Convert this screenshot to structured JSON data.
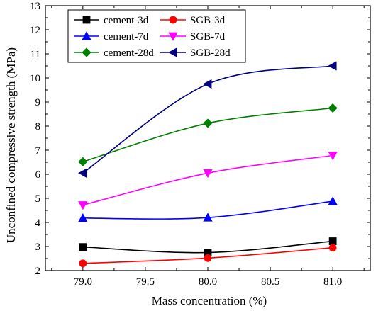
{
  "chart_data": {
    "type": "line",
    "xlabel": "Mass concentration (%)",
    "ylabel": "Unconfined compressive strength (MPa)",
    "xlim": [
      78.7,
      81.3
    ],
    "ylim": [
      2,
      13
    ],
    "x_ticks": [
      "79.0",
      "79.5",
      "80.0",
      "80.5",
      "81.0"
    ],
    "x_tick_values": [
      79.0,
      79.5,
      80.0,
      80.5,
      81.0
    ],
    "y_ticks": [
      "2",
      "3",
      "4",
      "5",
      "6",
      "7",
      "8",
      "9",
      "10",
      "11",
      "12",
      "13"
    ],
    "y_tick_values": [
      2,
      3,
      4,
      5,
      6,
      7,
      8,
      9,
      10,
      11,
      12,
      13
    ],
    "x": [
      79.0,
      80.0,
      81.0
    ],
    "legend_position": "top-left",
    "series": [
      {
        "name": "cement-3d",
        "values": [
          2.98,
          2.75,
          3.22
        ],
        "color": "#000000",
        "marker": "square"
      },
      {
        "name": "SGB-3d",
        "values": [
          2.3,
          2.52,
          2.95
        ],
        "color": "#ff0000",
        "marker": "circle"
      },
      {
        "name": "cement-7d",
        "values": [
          4.18,
          4.2,
          4.88
        ],
        "color": "#0000ff",
        "marker": "triangle-up"
      },
      {
        "name": "SGB-7d",
        "values": [
          4.72,
          6.05,
          6.78
        ],
        "color": "#ff00ff",
        "marker": "triangle-down"
      },
      {
        "name": "cement-28d",
        "values": [
          6.52,
          8.12,
          8.75
        ],
        "color": "#008000",
        "marker": "diamond"
      },
      {
        "name": "SGB-28d",
        "values": [
          6.05,
          9.75,
          10.5
        ],
        "color": "#000080",
        "marker": "triangle-left"
      }
    ],
    "legend_order": [
      "cement-3d",
      "SGB-3d",
      "cement-7d",
      "SGB-7d",
      "cement-28d",
      "SGB-28d"
    ]
  }
}
